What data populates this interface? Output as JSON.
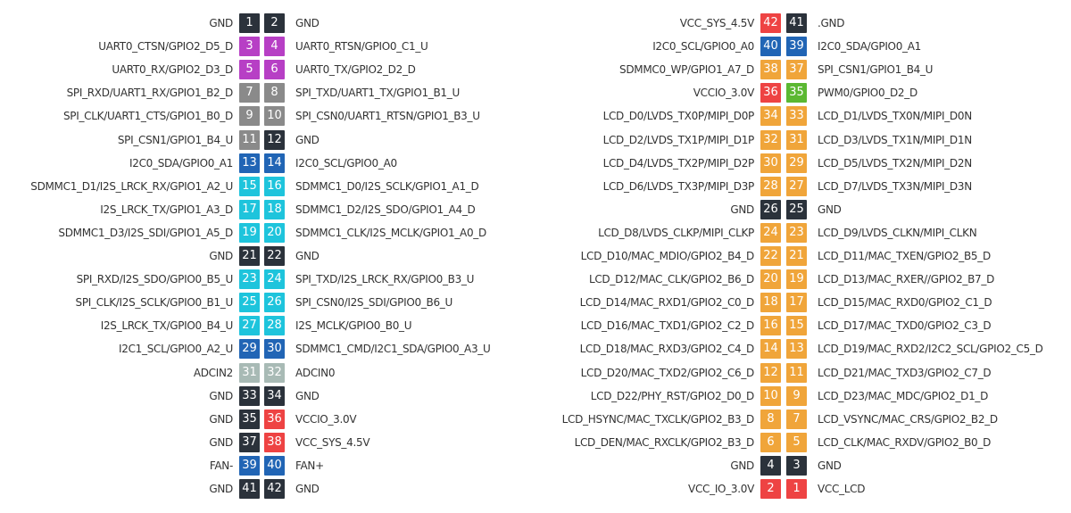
{
  "headers": [
    {
      "rows": [
        {
          "label_l": "GND",
          "pin_l": 1,
          "color_l": "#2b323b",
          "pin_r": 2,
          "color_r": "#2b323b",
          "label_r": "GND"
        },
        {
          "label_l": "UART0_CTSN/GPIO2_D5_D",
          "pin_l": 3,
          "color_l": "#b73fc5",
          "pin_r": 4,
          "color_r": "#b73fc5",
          "label_r": "UART0_RTSN/GPIO0_C1_U"
        },
        {
          "label_l": "UART0_RX/GPIO2_D3_D",
          "pin_l": 5,
          "color_l": "#b73fc5",
          "pin_r": 6,
          "color_r": "#b73fc5",
          "label_r": "UART0_TX/GPIO2_D2_D"
        },
        {
          "label_l": "SPI_RXD/UART1_RX/GPIO1_B2_D",
          "pin_l": 7,
          "color_l": "#8a8a8a",
          "pin_r": 8,
          "color_r": "#8a8a8a",
          "label_r": "SPI_TXD/UART1_TX/GPIO1_B1_U"
        },
        {
          "label_l": "SPI_CLK/UART1_CTS/GPIO1_B0_D",
          "pin_l": 9,
          "color_l": "#8a8a8a",
          "pin_r": 10,
          "color_r": "#8a8a8a",
          "label_r": "SPI_CSN0/UART1_RTSN/GPIO1_B3_U"
        },
        {
          "label_l": "SPI_CSN1/GPIO1_B4_U",
          "pin_l": 11,
          "color_l": "#8a8a8a",
          "pin_r": 12,
          "color_r": "#2b323b",
          "label_r": "GND"
        },
        {
          "label_l": "I2C0_SDA/GPIO0_A1",
          "pin_l": 13,
          "color_l": "#2165b5",
          "pin_r": 14,
          "color_r": "#2165b5",
          "label_r": "I2C0_SCL/GPIO0_A0"
        },
        {
          "label_l": "SDMMC1_D1/I2S_LRCK_RX/GPIO1_A2_U",
          "pin_l": 15,
          "color_l": "#1ec4dc",
          "pin_r": 16,
          "color_r": "#1ec4dc",
          "label_r": "SDMMC1_D0/I2S_SCLK/GPIO1_A1_D"
        },
        {
          "label_l": "I2S_LRCK_TX/GPIO1_A3_D",
          "pin_l": 17,
          "color_l": "#1ec4dc",
          "pin_r": 18,
          "color_r": "#1ec4dc",
          "label_r": "SDMMC1_D2/I2S_SDO/GPIO1_A4_D"
        },
        {
          "label_l": "SDMMC1_D3/I2S_SDI/GPIO1_A5_D",
          "pin_l": 19,
          "color_l": "#1ec4dc",
          "pin_r": 20,
          "color_r": "#1ec4dc",
          "label_r": "SDMMC1_CLK/I2S_MCLK/GPIO1_A0_D"
        },
        {
          "label_l": "GND",
          "pin_l": 21,
          "color_l": "#2b323b",
          "pin_r": 22,
          "color_r": "#2b323b",
          "label_r": "GND"
        },
        {
          "label_l": "SPI_RXD/I2S_SDO/GPIO0_B5_U",
          "pin_l": 23,
          "color_l": "#1ec4dc",
          "pin_r": 24,
          "color_r": "#1ec4dc",
          "label_r": "SPI_TXD/I2S_LRCK_RX/GPIO0_B3_U"
        },
        {
          "label_l": "SPI_CLK/I2S_SCLK/GPIO0_B1_U",
          "pin_l": 25,
          "color_l": "#1ec4dc",
          "pin_r": 26,
          "color_r": "#1ec4dc",
          "label_r": "SPI_CSN0/I2S_SDI/GPIO0_B6_U"
        },
        {
          "label_l": "I2S_LRCK_TX/GPIO0_B4_U",
          "pin_l": 27,
          "color_l": "#1ec4dc",
          "pin_r": 28,
          "color_r": "#1ec4dc",
          "label_r": "I2S_MCLK/GPIO0_B0_U"
        },
        {
          "label_l": "I2C1_SCL/GPIO0_A2_U",
          "pin_l": 29,
          "color_l": "#2165b5",
          "pin_r": 30,
          "color_r": "#2165b5",
          "label_r": "SDMMC1_CMD/I2C1_SDA/GPIO0_A3_U"
        },
        {
          "label_l": "ADCIN2",
          "pin_l": 31,
          "color_l": "#a8bab5",
          "pin_r": 32,
          "color_r": "#a8bab5",
          "label_r": "ADCIN0"
        },
        {
          "label_l": "GND",
          "pin_l": 33,
          "color_l": "#2b323b",
          "pin_r": 34,
          "color_r": "#2b323b",
          "label_r": "GND"
        },
        {
          "label_l": "GND",
          "pin_l": 35,
          "color_l": "#2b323b",
          "pin_r": 36,
          "color_r": "#ee4343",
          "label_r": "VCCIO_3.0V"
        },
        {
          "label_l": "GND",
          "pin_l": 37,
          "color_l": "#2b323b",
          "pin_r": 38,
          "color_r": "#ee4343",
          "label_r": "VCC_SYS_4.5V"
        },
        {
          "label_l": "FAN-",
          "pin_l": 39,
          "color_l": "#2165b5",
          "pin_r": 40,
          "color_r": "#2165b5",
          "label_r": "FAN+"
        },
        {
          "label_l": "GND",
          "pin_l": 41,
          "color_l": "#2b323b",
          "pin_r": 42,
          "color_r": "#2b323b",
          "label_r": "GND"
        }
      ]
    },
    {
      "rows": [
        {
          "label_l": "VCC_SYS_4.5V",
          "pin_l": 42,
          "color_l": "#ee4343",
          "pin_r": 41,
          "color_r": "#2b323b",
          "label_r": ".GND"
        },
        {
          "label_l": "I2C0_SCL/GPIO0_A0",
          "pin_l": 40,
          "color_l": "#2165b5",
          "pin_r": 39,
          "color_r": "#2165b5",
          "label_r": "I2C0_SDA/GPIO0_A1"
        },
        {
          "label_l": "SDMMC0_WP/GPIO1_A7_D",
          "pin_l": 38,
          "color_l": "#f0a53a",
          "pin_r": 37,
          "color_r": "#f0a53a",
          "label_r": "SPI_CSN1/GPIO1_B4_U"
        },
        {
          "label_l": "VCCIO_3.0V",
          "pin_l": 36,
          "color_l": "#ee4343",
          "pin_r": 35,
          "color_r": "#5bb832",
          "label_r": "PWM0/GPIO0_D2_D"
        },
        {
          "label_l": "LCD_D0/LVDS_TX0P/MIPI_D0P",
          "pin_l": 34,
          "color_l": "#f0a53a",
          "pin_r": 33,
          "color_r": "#f0a53a",
          "label_r": "LCD_D1/LVDS_TX0N/MIPI_D0N"
        },
        {
          "label_l": "LCD_D2/LVDS_TX1P/MIPI_D1P",
          "pin_l": 32,
          "color_l": "#f0a53a",
          "pin_r": 31,
          "color_r": "#f0a53a",
          "label_r": "LCD_D3/LVDS_TX1N/MIPI_D1N"
        },
        {
          "label_l": "LCD_D4/LVDS_TX2P/MIPI_D2P",
          "pin_l": 30,
          "color_l": "#f0a53a",
          "pin_r": 29,
          "color_r": "#f0a53a",
          "label_r": "LCD_D5/LVDS_TX2N/MIPI_D2N"
        },
        {
          "label_l": "LCD_D6/LVDS_TX3P/MIPI_D3P",
          "pin_l": 28,
          "color_l": "#f0a53a",
          "pin_r": 27,
          "color_r": "#f0a53a",
          "label_r": "LCD_D7/LVDS_TX3N/MIPI_D3N"
        },
        {
          "label_l": "GND",
          "pin_l": 26,
          "color_l": "#2b323b",
          "pin_r": 25,
          "color_r": "#2b323b",
          "label_r": "GND"
        },
        {
          "label_l": "LCD_D8/LVDS_CLKP/MIPI_CLKP",
          "pin_l": 24,
          "color_l": "#f0a53a",
          "pin_r": 23,
          "color_r": "#f0a53a",
          "label_r": "LCD_D9/LVDS_CLKN/MIPI_CLKN"
        },
        {
          "label_l": "LCD_D10/MAC_MDIO/GPIO2_B4_D",
          "pin_l": 22,
          "color_l": "#f0a53a",
          "pin_r": 21,
          "color_r": "#f0a53a",
          "label_r": "LCD_D11/MAC_TXEN/GPIO2_B5_D"
        },
        {
          "label_l": "LCD_D12/MAC_CLK/GPIO2_B6_D",
          "pin_l": 20,
          "color_l": "#f0a53a",
          "pin_r": 19,
          "color_r": "#f0a53a",
          "label_r": "LCD_D13/MAC_RXER//GPIO2_B7_D"
        },
        {
          "label_l": "LCD_D14/MAC_RXD1/GPIO2_C0_D",
          "pin_l": 18,
          "color_l": "#f0a53a",
          "pin_r": 17,
          "color_r": "#f0a53a",
          "label_r": "LCD_D15/MAC_RXD0/GPIO2_C1_D"
        },
        {
          "label_l": "LCD_D16/MAC_TXD1/GPIO2_C2_D",
          "pin_l": 16,
          "color_l": "#f0a53a",
          "pin_r": 15,
          "color_r": "#f0a53a",
          "label_r": "LCD_D17/MAC_TXD0/GPIO2_C3_D"
        },
        {
          "label_l": "LCD_D18/MAC_RXD3/GPIO2_C4_D",
          "pin_l": 14,
          "color_l": "#f0a53a",
          "pin_r": 13,
          "color_r": "#f0a53a",
          "label_r": "LCD_D19/MAC_RXD2/I2C2_SCL/GPIO2_C5_D"
        },
        {
          "label_l": "LCD_D20/MAC_TXD2/GPIO2_C6_D",
          "pin_l": 12,
          "color_l": "#f0a53a",
          "pin_r": 11,
          "color_r": "#f0a53a",
          "label_r": "LCD_D21/MAC_TXD3/GPIO2_C7_D"
        },
        {
          "label_l": "LCD_D22/PHY_RST/GPIO2_D0_D",
          "pin_l": 10,
          "color_l": "#f0a53a",
          "pin_r": 9,
          "color_r": "#f0a53a",
          "label_r": "LCD_D23/MAC_MDC/GPIO2_D1_D"
        },
        {
          "label_l": "LCD_HSYNC/MAC_TXCLK/GPIO2_B3_D",
          "pin_l": 8,
          "color_l": "#f0a53a",
          "pin_r": 7,
          "color_r": "#f0a53a",
          "label_r": "LCD_VSYNC/MAC_CRS/GPIO2_B2_D"
        },
        {
          "label_l": "LCD_DEN/MAC_RXCLK/GPIO2_B3_D",
          "pin_l": 6,
          "color_l": "#f0a53a",
          "pin_r": 5,
          "color_r": "#f0a53a",
          "label_r": "LCD_CLK/MAC_RXDV/GPIO2_B0_D"
        },
        {
          "label_l": "GND",
          "pin_l": 4,
          "color_l": "#2b323b",
          "pin_r": 3,
          "color_r": "#2b323b",
          "label_r": "GND"
        },
        {
          "label_l": "VCC_IO_3.0V",
          "pin_l": 2,
          "color_l": "#ee4343",
          "pin_r": 1,
          "color_r": "#ee4343",
          "label_r": "VCC_LCD"
        }
      ]
    }
  ]
}
